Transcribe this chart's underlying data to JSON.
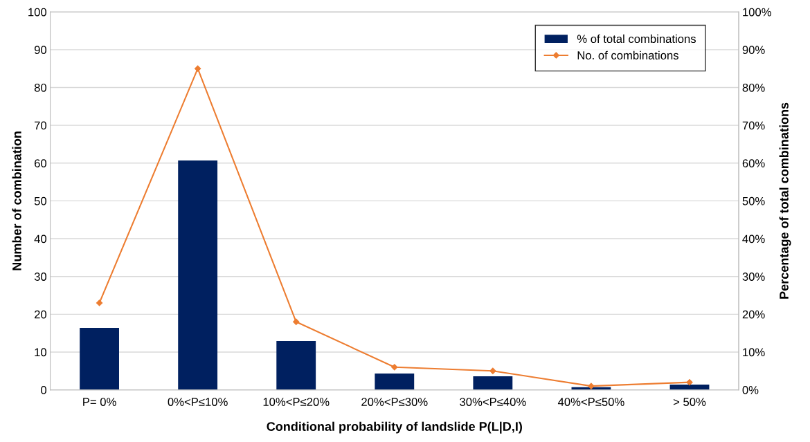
{
  "chart_data": {
    "type": "bar",
    "xlabel": "Conditional probability of landslide P(L|D,I)",
    "ylabel": "Number of combination",
    "y2label": "Percentage of total combinations",
    "categories": [
      "P= 0%",
      "0%<P≤10%",
      "10%<P≤20%",
      "20%<P≤30%",
      "30%<P≤40%",
      "40%<P≤50%",
      "> 50%"
    ],
    "series": [
      {
        "name": "% of total combinations",
        "axis": "y2",
        "color": "#002060",
        "values": [
          16.4,
          60.7,
          12.9,
          4.3,
          3.6,
          0.7,
          1.4
        ]
      },
      {
        "name": "No. of combinations",
        "type": "line",
        "axis": "y",
        "color": "#ed7d31",
        "marker": "diamond",
        "values": [
          23,
          85,
          18,
          6,
          5,
          1,
          2
        ]
      }
    ],
    "ylim": [
      0,
      100
    ],
    "yticks": [
      0,
      10,
      20,
      30,
      40,
      50,
      60,
      70,
      80,
      90,
      100
    ],
    "y2lim": [
      0,
      100
    ],
    "y2ticks": [
      {
        "value": 0,
        "label": "0%"
      },
      {
        "value": 10,
        "label": "10%"
      },
      {
        "value": 20,
        "label": "20%"
      },
      {
        "value": 30,
        "label": "30%"
      },
      {
        "value": 40,
        "label": "40%"
      },
      {
        "value": 50,
        "label": "50%"
      },
      {
        "value": 60,
        "label": "60%"
      },
      {
        "value": 70,
        "label": "70%"
      },
      {
        "value": 80,
        "label": "80%"
      },
      {
        "value": 90,
        "label": "90%"
      },
      {
        "value": 100,
        "label": "100%"
      }
    ],
    "grid": "y",
    "legend": "top right"
  }
}
